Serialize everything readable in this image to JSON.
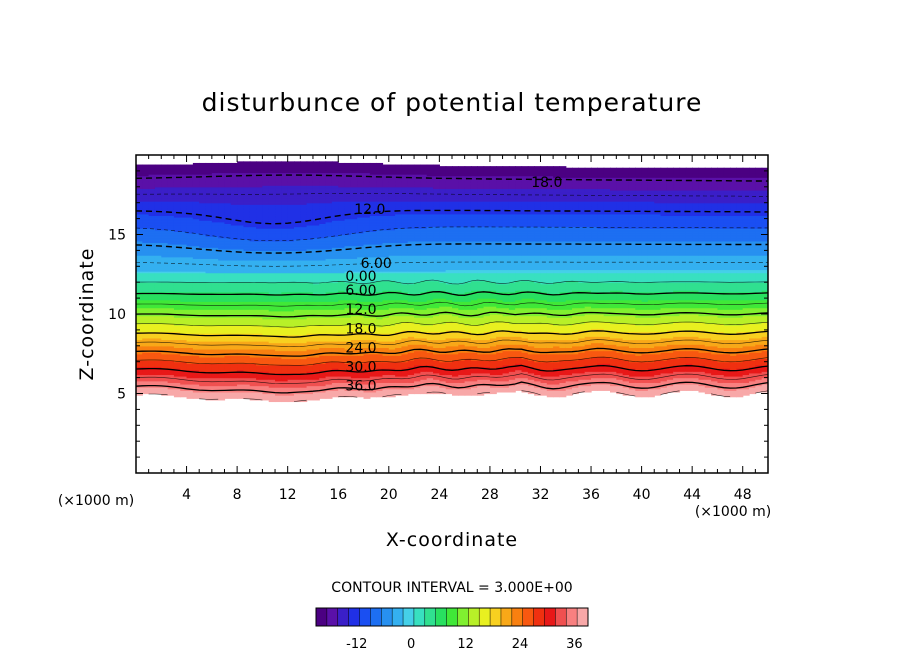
{
  "chart_data": {
    "type": "heatmap",
    "title": "disturbunce of potential temperature",
    "xlabel": "X-coordinate",
    "ylabel": "Z-coordinate",
    "x_unit": "(×1000 m)",
    "z_unit": "(×1000 m)",
    "xlim": [
      0,
      50
    ],
    "ylim": [
      0,
      20
    ],
    "x_ticks": [
      4,
      8,
      12,
      16,
      20,
      24,
      28,
      32,
      36,
      40,
      44,
      48
    ],
    "y_ticks": [
      5,
      10,
      15
    ],
    "contour_interval_text": "CONTOUR INTERVAL = 3.000E+00",
    "colorbar": {
      "min": -21,
      "max": 39,
      "step": 3,
      "tick_labels": [
        "-12",
        "0",
        "12",
        "24",
        "36"
      ],
      "tick_values": [
        -12,
        0,
        12,
        24,
        36
      ],
      "colors": [
        "#4b0082",
        "#5a10a8",
        "#3a1fc8",
        "#2030e6",
        "#1a4ff2",
        "#1d6ff2",
        "#2790f0",
        "#34b0f0",
        "#45d0e8",
        "#38e0c0",
        "#30e090",
        "#28e060",
        "#40e838",
        "#80f030",
        "#b8f028",
        "#e8f020",
        "#f8d020",
        "#f8a818",
        "#f88010",
        "#f85810",
        "#f03010",
        "#e81818",
        "#f05050",
        "#f88080",
        "#f8a8a8"
      ]
    },
    "contour_labels": [
      {
        "text": "18.0",
        "x": 32.5,
        "z": 18.3
      },
      {
        "text": "12.0",
        "x": 18.5,
        "z": 16.6
      },
      {
        "text": "6.00",
        "x": 19.0,
        "z": 13.2
      },
      {
        "text": "0.00",
        "x": 17.8,
        "z": 12.4
      },
      {
        "text": "6.00",
        "x": 17.8,
        "z": 11.5
      },
      {
        "text": "12.0",
        "x": 17.8,
        "z": 10.3
      },
      {
        "text": "18.0",
        "x": 17.8,
        "z": 9.1
      },
      {
        "text": "24.0",
        "x": 17.8,
        "z": 7.9
      },
      {
        "text": "30.0",
        "x": 17.8,
        "z": 6.7
      },
      {
        "text": "36.0",
        "x": 17.8,
        "z": 5.5
      }
    ],
    "field_notes": {
      "negative_region_z": [
        12.5,
        20
      ],
      "positive_region_z": [
        4.5,
        12.5
      ],
      "empty_below_z": 4.5
    }
  }
}
